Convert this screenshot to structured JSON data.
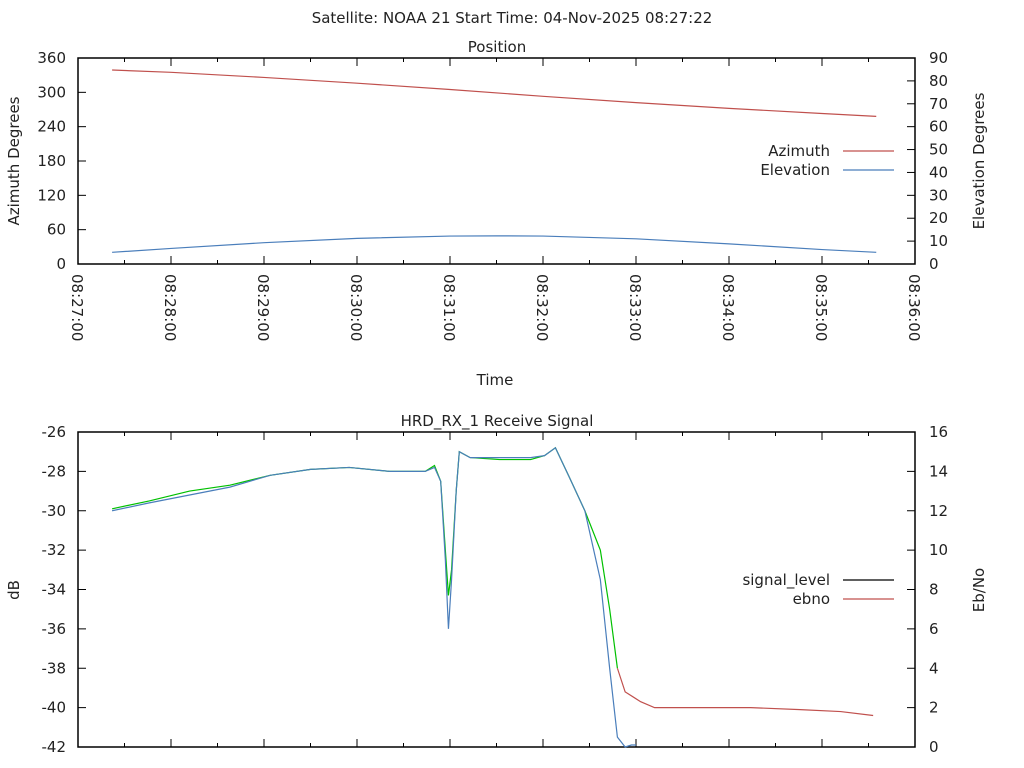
{
  "header": {
    "title": "Satellite: NOAA 21    Start Time: 04-Nov-2025 08:27:22"
  },
  "chart_data": [
    {
      "type": "line",
      "title": "Position",
      "xlabel": "Time",
      "ylabel": "Azimuth Degrees",
      "y2label": "Elevation Degrees",
      "xlim": [
        "08:27:00",
        "08:36:00"
      ],
      "xticks": [
        "08:27:00",
        "08:28:00",
        "08:29:00",
        "08:30:00",
        "08:31:00",
        "08:32:00",
        "08:33:00",
        "08:34:00",
        "08:35:00",
        "08:36:00"
      ],
      "ylim": [
        0,
        360
      ],
      "yticks": [
        "0",
        "60",
        "120",
        "180",
        "240",
        "300",
        "360"
      ],
      "y2lim": [
        0,
        90
      ],
      "y2ticks": [
        "0",
        "10",
        "20",
        "30",
        "40",
        "50",
        "60",
        "70",
        "80",
        "90"
      ],
      "legend_position": "right",
      "series": [
        {
          "name": "Azimuth",
          "axis": "y",
          "color": "#c0504d",
          "x": [
            "08:27:22",
            "08:28:00",
            "08:29:00",
            "08:30:00",
            "08:31:00",
            "08:32:00",
            "08:33:00",
            "08:34:00",
            "08:35:00",
            "08:35:35"
          ],
          "values": [
            339,
            335,
            326,
            316,
            305,
            293,
            282,
            272,
            263,
            258
          ]
        },
        {
          "name": "Elevation",
          "axis": "y2",
          "color": "#4a7ebb",
          "x": [
            "08:27:22",
            "08:28:00",
            "08:29:00",
            "08:30:00",
            "08:31:00",
            "08:31:30",
            "08:32:00",
            "08:33:00",
            "08:34:00",
            "08:35:00",
            "08:35:35"
          ],
          "values": [
            5.1,
            6.8,
            9.3,
            11.2,
            12.2,
            12.3,
            12.2,
            11.0,
            8.8,
            6.3,
            5.1
          ]
        }
      ]
    },
    {
      "type": "line",
      "title": "HRD_RX_1 Receive Signal",
      "xlabel": "",
      "ylabel": "dB",
      "y2label": "Eb/No",
      "xlim": [
        "08:27:00",
        "08:36:00"
      ],
      "ylim": [
        -42,
        -26
      ],
      "yticks": [
        "-42",
        "-40",
        "-38",
        "-36",
        "-34",
        "-32",
        "-30",
        "-28",
        "-26"
      ],
      "y2lim": [
        0,
        16
      ],
      "y2ticks": [
        "0",
        "2",
        "4",
        "6",
        "8",
        "10",
        "12",
        "14",
        "16"
      ],
      "legend_position": "right",
      "legend": [
        {
          "name": "signal_level",
          "color": "#000000"
        },
        {
          "name": "ebno",
          "color": "#c0504d"
        }
      ],
      "series": [
        {
          "name": "signal_level",
          "axis": "y",
          "color": "#00c000",
          "color_after": "#c0504d",
          "color_change_at": "08:32:50",
          "x": [
            "08:27:22",
            "08:27:46",
            "08:28:12",
            "08:28:38",
            "08:29:04",
            "08:29:30",
            "08:29:55",
            "08:30:21",
            "08:30:44",
            "08:30:50",
            "08:30:54",
            "08:30:57",
            "08:30:59",
            "08:31:01",
            "08:31:04",
            "08:31:06",
            "08:31:13",
            "08:31:32",
            "08:31:52",
            "08:32:01",
            "08:32:08",
            "08:32:17",
            "08:32:27",
            "08:32:37",
            "08:32:43",
            "08:32:48",
            "08:32:53",
            "08:33:03",
            "08:33:12",
            "08:33:41",
            "08:34:14",
            "08:34:46",
            "08:35:12",
            "08:35:33"
          ],
          "values": [
            -29.9,
            -29.5,
            -29.0,
            -28.7,
            -28.2,
            -27.9,
            -27.8,
            -28.0,
            -28.0,
            -27.7,
            -28.5,
            -32.0,
            -34.3,
            -33.0,
            -29.0,
            -27.0,
            -27.3,
            -27.4,
            -27.4,
            -27.2,
            -26.8,
            -28.3,
            -30.0,
            -32.0,
            -35.0,
            -38.0,
            -39.2,
            -39.7,
            -40.0,
            -40.0,
            -40.0,
            -40.1,
            -40.2,
            -40.4
          ]
        },
        {
          "name": "ebno",
          "axis": "y2",
          "color": "#4a7ebb",
          "x": [
            "08:27:22",
            "08:27:46",
            "08:28:12",
            "08:28:38",
            "08:29:04",
            "08:29:30",
            "08:29:55",
            "08:30:21",
            "08:30:44",
            "08:30:50",
            "08:30:54",
            "08:30:57",
            "08:30:59",
            "08:31:01",
            "08:31:04",
            "08:31:06",
            "08:31:13",
            "08:31:32",
            "08:31:52",
            "08:32:01",
            "08:32:08",
            "08:32:17",
            "08:32:27",
            "08:32:37",
            "08:32:43",
            "08:32:48",
            "08:32:53",
            "08:32:57",
            "08:33:00"
          ],
          "values": [
            12.0,
            12.4,
            12.8,
            13.2,
            13.8,
            14.1,
            14.2,
            14.0,
            14.0,
            14.2,
            13.5,
            9.5,
            6.0,
            8.5,
            13.0,
            15.0,
            14.7,
            14.7,
            14.7,
            14.8,
            15.2,
            13.7,
            12.0,
            8.5,
            4.0,
            0.5,
            0.0,
            0.1,
            0.1
          ]
        }
      ]
    }
  ]
}
